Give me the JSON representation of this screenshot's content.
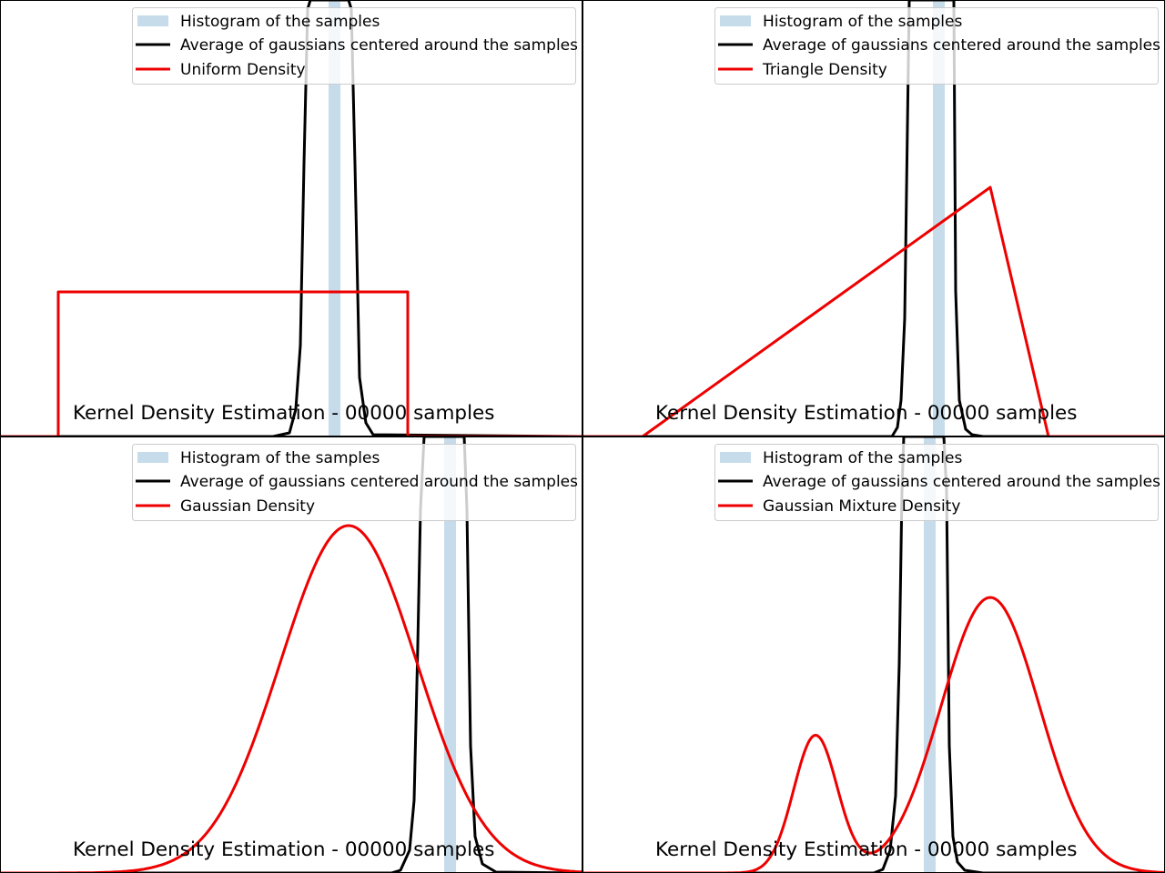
{
  "figure": {
    "layout": "2x2 grid",
    "background": "#ffffff"
  },
  "colors": {
    "histogram": "#c7dcea",
    "kde": "#000000",
    "density": "#ee0000",
    "legend_border": "#cccccc"
  },
  "chart_data": [
    {
      "type": "line",
      "title": "Kernel Density Estimation - 00000 samples",
      "xlim": [
        0,
        640
      ],
      "ylim": [
        0,
        480
      ],
      "grid": false,
      "axes_visible": false,
      "legend_placement": "upper-right",
      "legend": [
        "Histogram of the samples",
        "Average of gaussians centered around the samples",
        "Uniform Density"
      ],
      "histogram": {
        "x_start": 361,
        "x_end": 374
      },
      "series": [
        {
          "name": "Average of gaussians centered around the samples",
          "x": [
            0,
            300,
            318,
            325,
            330,
            334,
            338,
            341,
            383,
            386,
            390,
            395,
            402,
            410,
            640
          ],
          "y": [
            0,
            0,
            4,
            30,
            100,
            300,
            470,
            480,
            480,
            470,
            300,
            65,
            15,
            2,
            0
          ]
        },
        {
          "name": "Uniform Density",
          "x": [
            0,
            64,
            64,
            448,
            448,
            640
          ],
          "y": [
            0,
            0,
            159,
            159,
            0,
            0
          ]
        }
      ]
    },
    {
      "type": "line",
      "title": "Kernel Density Estimation - 00000 samples",
      "xlim": [
        0,
        640
      ],
      "ylim": [
        0,
        480
      ],
      "grid": false,
      "axes_visible": false,
      "legend_placement": "upper-right",
      "legend": [
        "Histogram of the samples",
        "Average of gaussians centered around the samples",
        "Triangle Density"
      ],
      "histogram": {
        "x_start": 385,
        "x_end": 398
      },
      "series": [
        {
          "name": "Average of gaussians centered around the samples",
          "x": [
            0,
            340,
            346,
            350,
            354,
            359,
            361,
            364,
            405,
            408,
            410,
            414,
            421,
            428,
            440,
            640
          ],
          "y": [
            0,
            0,
            10,
            40,
            130,
            480,
            480,
            480,
            480,
            480,
            160,
            40,
            8,
            2,
            0,
            0
          ]
        },
        {
          "name": "Triangle Density",
          "x": [
            0,
            66,
            448,
            512,
            640
          ],
          "y": [
            0,
            0,
            274,
            0,
            0
          ]
        }
      ]
    },
    {
      "type": "line",
      "title": "Kernel Density Estimation - 00000 samples",
      "xlim": [
        0,
        640
      ],
      "ylim": [
        0,
        480
      ],
      "grid": false,
      "axes_visible": false,
      "legend_placement": "upper-right",
      "legend": [
        "Histogram of the samples",
        "Average of gaussians centered around the samples",
        "Gaussian Density"
      ],
      "histogram": {
        "x_start": 488,
        "x_end": 501
      },
      "series": [
        {
          "name": "Average of gaussians centered around the samples",
          "x": [
            0,
            430,
            440,
            450,
            455,
            459,
            462,
            466,
            510,
            513,
            517,
            522,
            530,
            545,
            640
          ],
          "y": [
            0,
            0,
            3,
            25,
            80,
            250,
            400,
            480,
            480,
            400,
            140,
            40,
            10,
            1,
            0
          ]
        },
        {
          "name": "Gaussian Density",
          "mean": 383,
          "sd": 75,
          "peak": 382
        }
      ]
    },
    {
      "type": "line",
      "title": "Kernel Density Estimation - 00000 samples",
      "xlim": [
        0,
        640
      ],
      "ylim": [
        0,
        480
      ],
      "grid": false,
      "axes_visible": false,
      "legend_placement": "upper-right",
      "legend": [
        "Histogram of the samples",
        "Average of gaussians centered around the samples",
        "Gaussian Mixture Density"
      ],
      "histogram": {
        "x_start": 375,
        "x_end": 388
      },
      "series": [
        {
          "name": "Average of gaussians centered around the samples",
          "x": [
            0,
            320,
            330,
            338,
            344,
            348,
            351,
            353,
            397,
            400,
            403,
            407,
            412,
            420,
            440,
            640
          ],
          "y": [
            0,
            0,
            4,
            25,
            85,
            230,
            420,
            480,
            480,
            420,
            140,
            40,
            12,
            3,
            0,
            0
          ]
        },
        {
          "name": "Gaussian Mixture Density",
          "components": [
            {
              "mean": 256,
              "sd": 24,
              "peak": 151
            },
            {
              "mean": 448,
              "sd": 54,
              "peak": 303
            }
          ]
        }
      ]
    }
  ]
}
